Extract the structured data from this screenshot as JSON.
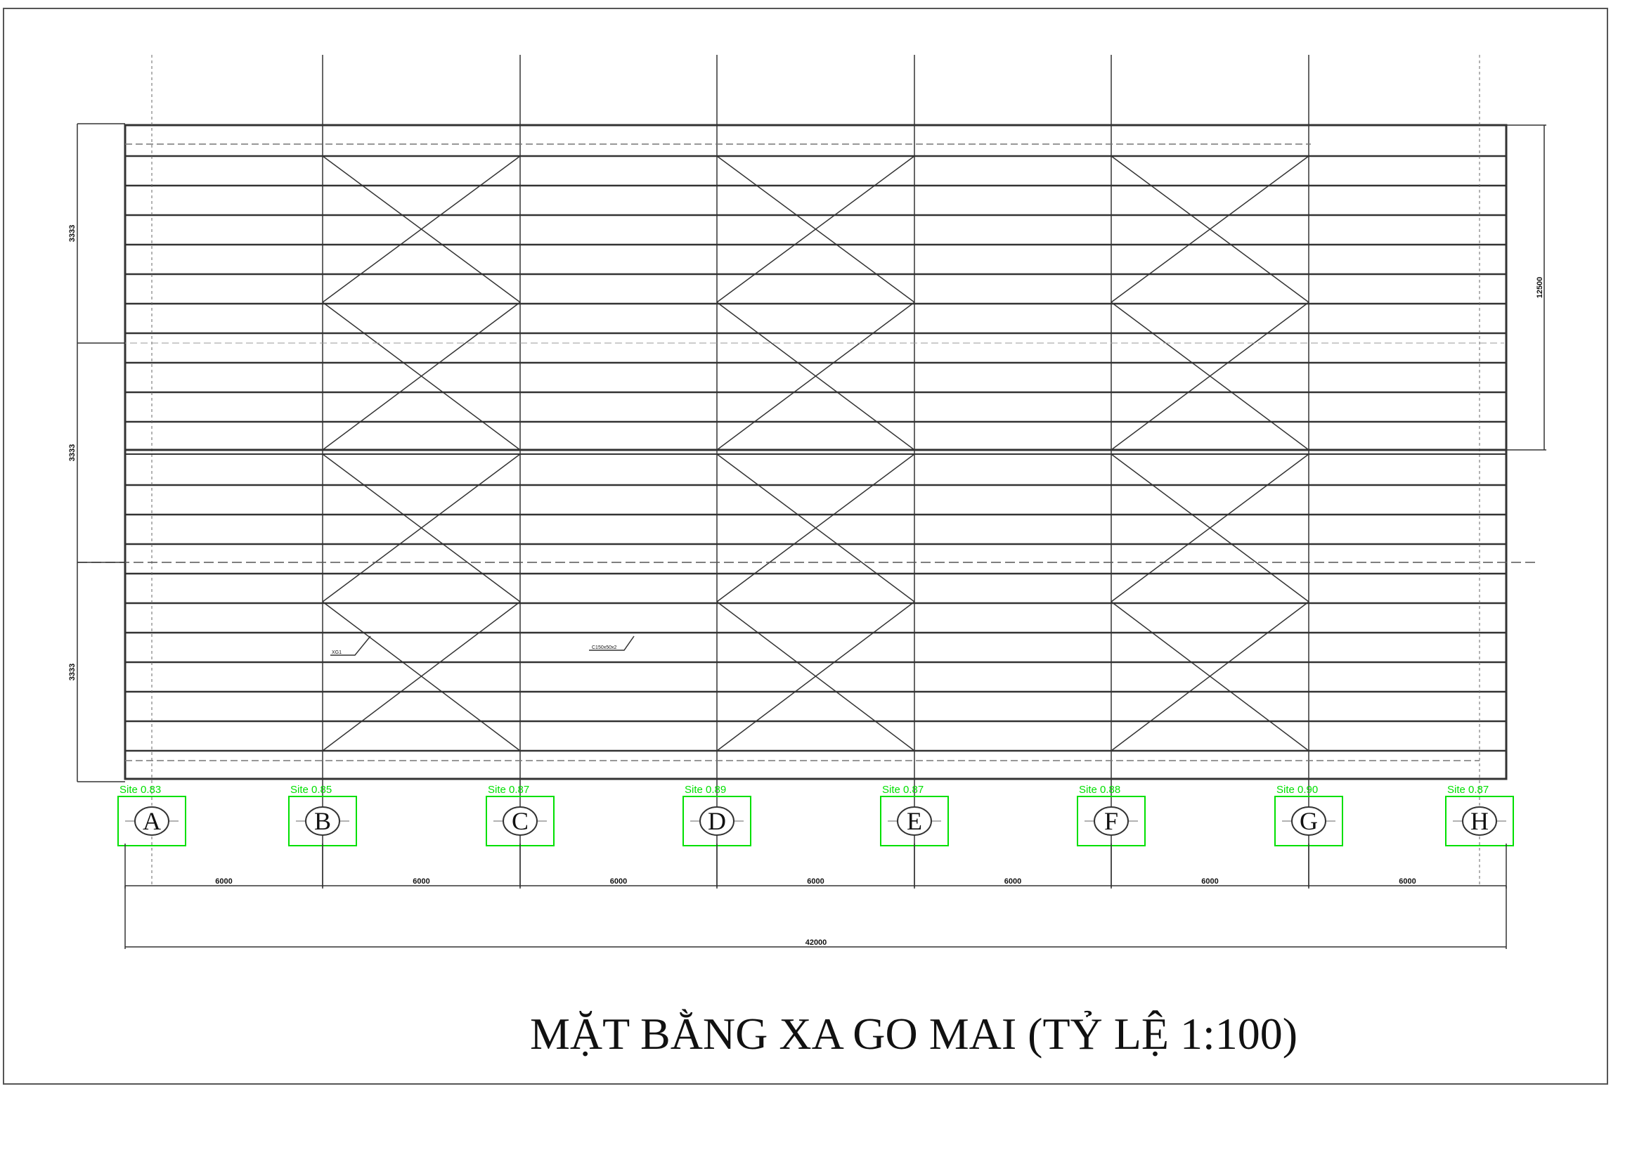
{
  "drawing": {
    "title": "MẶT BẰNG XA GO MAI (TỶ LỆ 1:100)",
    "axes": [
      {
        "label": "A",
        "detection": "Site 0.83"
      },
      {
        "label": "B",
        "detection": "Site 0.85"
      },
      {
        "label": "C",
        "detection": "Site 0.87"
      },
      {
        "label": "D",
        "detection": "Site 0.89"
      },
      {
        "label": "E",
        "detection": "Site 0.87"
      },
      {
        "label": "F",
        "detection": "Site 0.88"
      },
      {
        "label": "G",
        "detection": "Site 0.90"
      },
      {
        "label": "H",
        "detection": "Site 0.87"
      }
    ],
    "bay_dimensions": [
      "6000",
      "6000",
      "6000",
      "6000",
      "6000",
      "6000",
      "6000"
    ],
    "total_dimension": "42000",
    "left_dimensions": [
      "3333",
      "3333",
      "3333"
    ],
    "right_dimension": "12500",
    "callouts": [
      "XG1",
      "C150x50x2"
    ],
    "colors": {
      "line": "#333333",
      "detection": "#00e000",
      "sheet_border": "#555555"
    }
  }
}
